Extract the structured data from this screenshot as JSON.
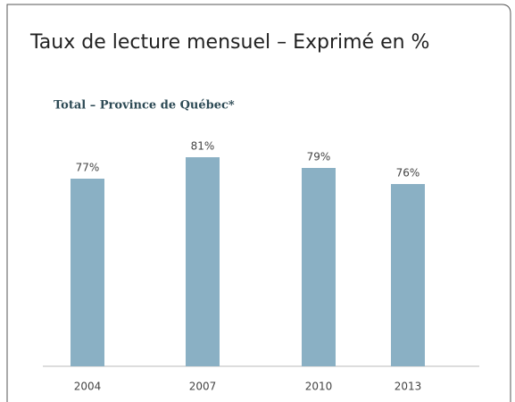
{
  "chart_data": {
    "type": "bar",
    "title": "Taux de lecture mensuel – Exprimé en %",
    "subtitle": "Total – Province de Québec*",
    "categories": [
      "2004",
      "2007",
      "2010",
      "2013"
    ],
    "values": [
      77,
      81,
      79,
      76
    ],
    "value_labels": [
      "77%",
      "81%",
      "79%",
      "76%"
    ],
    "color": "#8ab0c4",
    "ylim": [
      42,
      85
    ]
  }
}
